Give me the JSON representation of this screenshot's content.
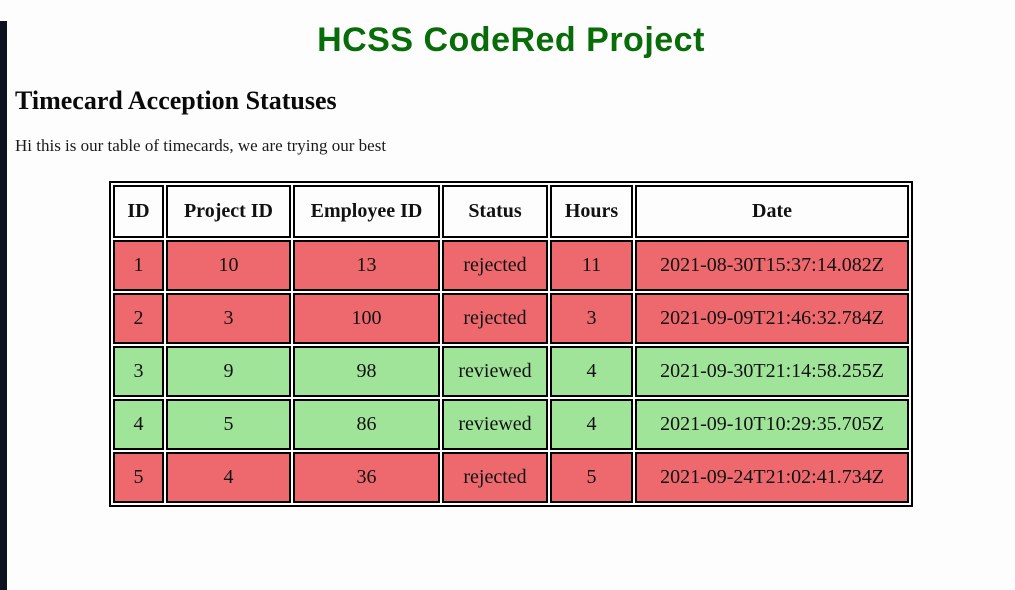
{
  "page": {
    "title": "HCSS CodeRed Project",
    "heading": "Timecard Acception Statuses",
    "intro": "Hi this is our table of timecards, we are trying our best"
  },
  "colors": {
    "title_green": "#086c08",
    "rejected_red": "#ed696d",
    "reviewed_green": "#a0e49a",
    "window_edge_bar": "#0e1220",
    "table_border": "#000000"
  },
  "table": {
    "columns": [
      "ID",
      "Project ID",
      "Employee ID",
      "Status",
      "Hours",
      "Date"
    ],
    "rows": [
      {
        "id": "1",
        "project_id": "10",
        "employee_id": "13",
        "status": "rejected",
        "hours": "11",
        "date": "2021-08-30T15:37:14.082Z"
      },
      {
        "id": "2",
        "project_id": "3",
        "employee_id": "100",
        "status": "rejected",
        "hours": "3",
        "date": "2021-09-09T21:46:32.784Z"
      },
      {
        "id": "3",
        "project_id": "9",
        "employee_id": "98",
        "status": "reviewed",
        "hours": "4",
        "date": "2021-09-30T21:14:58.255Z"
      },
      {
        "id": "4",
        "project_id": "5",
        "employee_id": "86",
        "status": "reviewed",
        "hours": "4",
        "date": "2021-09-10T10:29:35.705Z"
      },
      {
        "id": "5",
        "project_id": "4",
        "employee_id": "36",
        "status": "rejected",
        "hours": "5",
        "date": "2021-09-24T21:02:41.734Z"
      }
    ]
  }
}
